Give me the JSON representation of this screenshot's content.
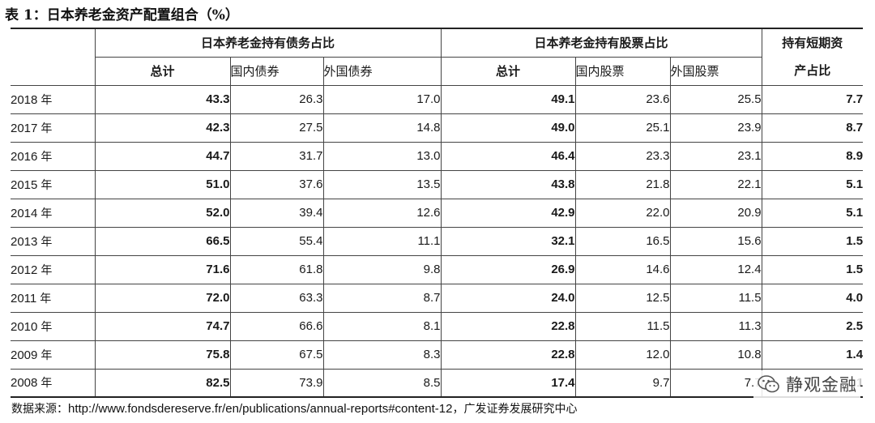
{
  "title": "表 1：日本养老金资产配置组合（%）",
  "headers": {
    "bond_group": "日本养老金持有债务占比",
    "stock_group": "日本养老金持有股票占比",
    "short_term_line1": "持有短期资",
    "short_term_line2": "产占比",
    "total": "总计",
    "domestic_bond": "国内债券",
    "foreign_bond": "外国债券",
    "domestic_stock": "国内股票",
    "foreign_stock": "外国股票"
  },
  "year_suffix": "年",
  "rows": [
    {
      "year": "2018",
      "bond_total": "43.3",
      "bond_dom": "26.3",
      "bond_for": "17.0",
      "stock_total": "49.1",
      "stock_dom": "23.6",
      "stock_for": "25.5",
      "short": "7.7"
    },
    {
      "year": "2017",
      "bond_total": "42.3",
      "bond_dom": "27.5",
      "bond_for": "14.8",
      "stock_total": "49.0",
      "stock_dom": "25.1",
      "stock_for": "23.9",
      "short": "8.7"
    },
    {
      "year": "2016",
      "bond_total": "44.7",
      "bond_dom": "31.7",
      "bond_for": "13.0",
      "stock_total": "46.4",
      "stock_dom": "23.3",
      "stock_for": "23.1",
      "short": "8.9"
    },
    {
      "year": "2015",
      "bond_total": "51.0",
      "bond_dom": "37.6",
      "bond_for": "13.5",
      "stock_total": "43.8",
      "stock_dom": "21.8",
      "stock_for": "22.1",
      "short": "5.1"
    },
    {
      "year": "2014",
      "bond_total": "52.0",
      "bond_dom": "39.4",
      "bond_for": "12.6",
      "stock_total": "42.9",
      "stock_dom": "22.0",
      "stock_for": "20.9",
      "short": "5.1"
    },
    {
      "year": "2013",
      "bond_total": "66.5",
      "bond_dom": "55.4",
      "bond_for": "11.1",
      "stock_total": "32.1",
      "stock_dom": "16.5",
      "stock_for": "15.6",
      "short": "1.5"
    },
    {
      "year": "2012",
      "bond_total": "71.6",
      "bond_dom": "61.8",
      "bond_for": "9.8",
      "stock_total": "26.9",
      "stock_dom": "14.6",
      "stock_for": "12.4",
      "short": "1.5"
    },
    {
      "year": "2011",
      "bond_total": "72.0",
      "bond_dom": "63.3",
      "bond_for": "8.7",
      "stock_total": "24.0",
      "stock_dom": "12.5",
      "stock_for": "11.5",
      "short": "4.0"
    },
    {
      "year": "2010",
      "bond_total": "74.7",
      "bond_dom": "66.6",
      "bond_for": "8.1",
      "stock_total": "22.8",
      "stock_dom": "11.5",
      "stock_for": "11.3",
      "short": "2.5"
    },
    {
      "year": "2009",
      "bond_total": "75.8",
      "bond_dom": "67.5",
      "bond_for": "8.3",
      "stock_total": "22.8",
      "stock_dom": "12.0",
      "stock_for": "10.8",
      "short": "1.4"
    },
    {
      "year": "2008",
      "bond_total": "82.5",
      "bond_dom": "73.9",
      "bond_for": "8.5",
      "stock_total": "17.4",
      "stock_dom": "9.7",
      "stock_for": "7.7",
      "short": "1"
    }
  ],
  "source": {
    "label": "数据来源：",
    "url": "http://www.fondsdereserve.fr/en/publications/annual-reports#content-12",
    "org": "，广发证券发展研究中心"
  },
  "watermark": {
    "text": "静观金融",
    "icon": "wechat-icon"
  }
}
